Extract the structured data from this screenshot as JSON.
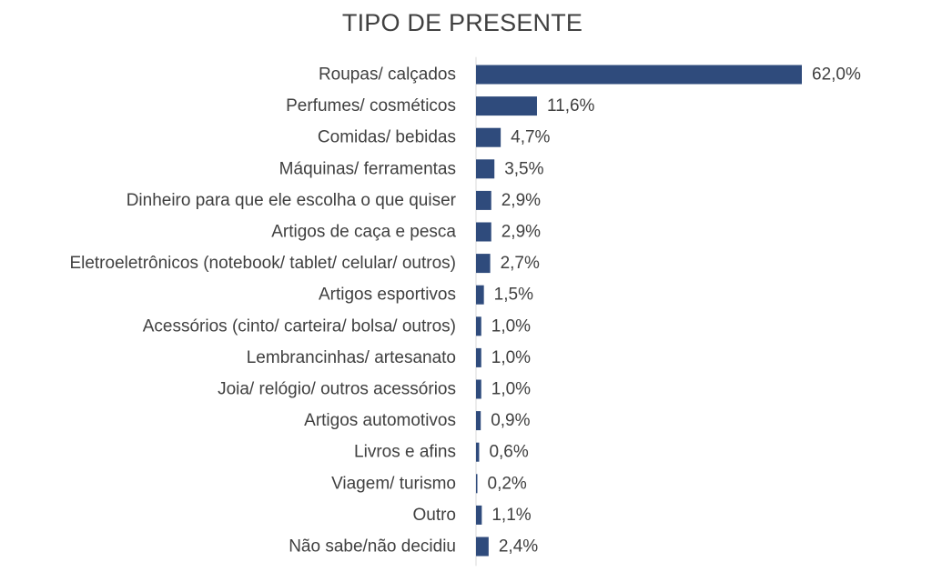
{
  "chart_data": {
    "type": "bar",
    "orientation": "horizontal",
    "title": "TIPO DE PRESENTE",
    "xlabel": "",
    "ylabel": "",
    "categories": [
      "Roupas/ calçados",
      "Perfumes/ cosméticos",
      "Comidas/ bebidas",
      "Máquinas/ ferramentas",
      "Dinheiro para que ele escolha o que quiser",
      "Artigos de caça e pesca",
      "Eletroeletrônicos (notebook/ tablet/ celular/ outros)",
      "Artigos esportivos",
      "Acessórios (cinto/ carteira/ bolsa/ outros)",
      "Lembrancinhas/ artesanato",
      "Joia/ relógio/ outros acessórios",
      "Artigos automotivos",
      "Livros e afins",
      "Viagem/ turismo",
      "Outro",
      "Não sabe/não decidiu"
    ],
    "values": [
      62.0,
      11.6,
      4.7,
      3.5,
      2.9,
      2.9,
      2.7,
      1.5,
      1.0,
      1.0,
      1.0,
      0.9,
      0.6,
      0.2,
      1.1,
      2.4
    ],
    "value_labels": [
      "62,0%",
      "11,6%",
      "4,7%",
      "3,5%",
      "2,9%",
      "2,9%",
      "2,7%",
      "1,5%",
      "1,0%",
      "1,0%",
      "1,0%",
      "0,9%",
      "0,6%",
      "0,2%",
      "1,1%",
      "2,4%"
    ],
    "unit": "%",
    "xlim": [
      0,
      62.0
    ],
    "grid": false,
    "legend": "none",
    "bar_color": "#2f4b7c",
    "axis_color": "#d9d9d9"
  }
}
